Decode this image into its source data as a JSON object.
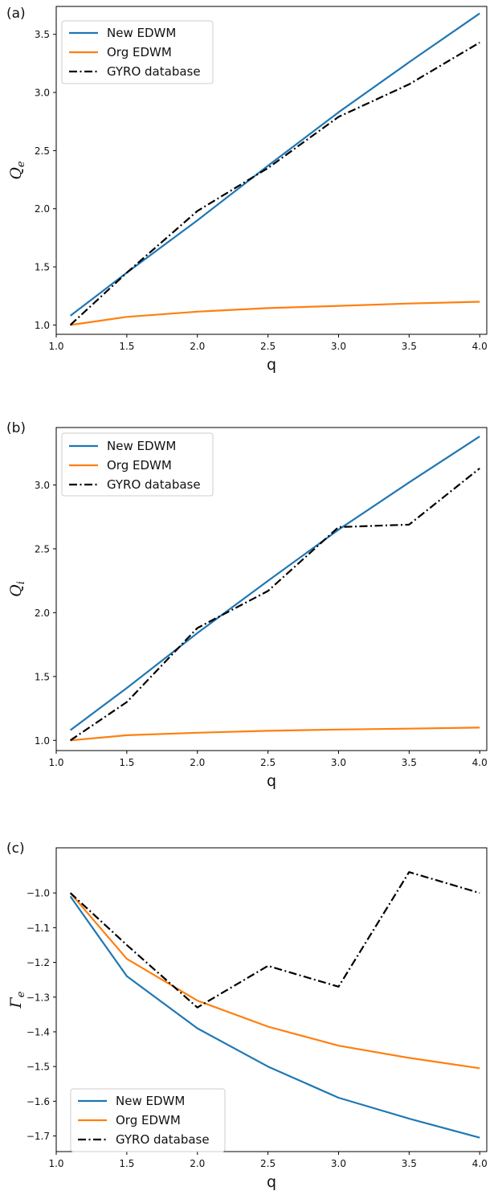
{
  "chart_data": [
    {
      "type": "line",
      "panel_label": "(a)",
      "xlabel": "q",
      "ylabel": "Q_e",
      "xlim": [
        1.0,
        4.05
      ],
      "ylim": [
        0.92,
        3.74
      ],
      "xticks": [
        "1.0",
        "1.5",
        "2.0",
        "2.5",
        "3.0",
        "3.5",
        "4.0"
      ],
      "yticks": [
        "1.0",
        "1.5",
        "2.0",
        "2.5",
        "3.0",
        "3.5"
      ],
      "legend_position": "top-left",
      "grid": false,
      "series": [
        {
          "name": "New EDWM",
          "color": "#1f77b4",
          "style": "solid",
          "x": [
            1.1,
            1.5,
            2.0,
            2.5,
            3.0,
            3.5,
            4.0
          ],
          "y": [
            1.08,
            1.45,
            1.9,
            2.37,
            2.83,
            3.26,
            3.68
          ]
        },
        {
          "name": "Org EDWM",
          "color": "#ff7f0e",
          "style": "solid",
          "x": [
            1.1,
            1.5,
            2.0,
            2.5,
            3.0,
            3.5,
            4.0
          ],
          "y": [
            1.0,
            1.07,
            1.115,
            1.145,
            1.165,
            1.185,
            1.2
          ]
        },
        {
          "name": "GYRO database",
          "color": "#000000",
          "style": "dashdot",
          "x": [
            1.1,
            1.5,
            2.0,
            2.5,
            3.0,
            3.5,
            4.0
          ],
          "y": [
            1.0,
            1.45,
            1.98,
            2.35,
            2.79,
            3.07,
            3.43
          ]
        }
      ]
    },
    {
      "type": "line",
      "panel_label": "(b)",
      "xlabel": "q",
      "ylabel": "Q_i",
      "xlim": [
        1.0,
        4.05
      ],
      "ylim": [
        0.92,
        3.45
      ],
      "xticks": [
        "1.0",
        "1.5",
        "2.0",
        "2.5",
        "3.0",
        "3.5",
        "4.0"
      ],
      "yticks": [
        "1.0",
        "1.5",
        "2.0",
        "2.5",
        "3.0"
      ],
      "legend_position": "top-left",
      "grid": false,
      "series": [
        {
          "name": "New EDWM",
          "color": "#1f77b4",
          "style": "solid",
          "x": [
            1.1,
            1.5,
            2.0,
            2.5,
            3.0,
            3.5,
            4.0
          ],
          "y": [
            1.08,
            1.41,
            1.84,
            2.25,
            2.65,
            3.02,
            3.38
          ]
        },
        {
          "name": "Org EDWM",
          "color": "#ff7f0e",
          "style": "solid",
          "x": [
            1.1,
            1.5,
            2.0,
            2.5,
            3.0,
            3.5,
            4.0
          ],
          "y": [
            1.0,
            1.04,
            1.06,
            1.075,
            1.085,
            1.092,
            1.1
          ]
        },
        {
          "name": "GYRO database",
          "color": "#000000",
          "style": "dashdot",
          "x": [
            1.1,
            1.5,
            2.0,
            2.5,
            3.0,
            3.5,
            4.0
          ],
          "y": [
            1.0,
            1.3,
            1.88,
            2.17,
            2.67,
            2.69,
            3.13
          ]
        }
      ]
    },
    {
      "type": "line",
      "panel_label": "(c)",
      "xlabel": "q",
      "ylabel": "Γ_e",
      "xlim": [
        1.0,
        4.05
      ],
      "ylim": [
        -1.745,
        -0.87
      ],
      "xticks": [
        "1.0",
        "1.5",
        "2.0",
        "2.5",
        "3.0",
        "3.5",
        "4.0"
      ],
      "yticks": [
        "−1.0",
        "−1.1",
        "−1.2",
        "−1.3",
        "−1.4",
        "−1.5",
        "−1.6",
        "−1.7"
      ],
      "legend_position": "bottom-left",
      "grid": false,
      "series": [
        {
          "name": "New EDWM",
          "color": "#1f77b4",
          "style": "solid",
          "x": [
            1.1,
            1.5,
            2.0,
            2.5,
            3.0,
            3.5,
            4.0
          ],
          "y": [
            -1.01,
            -1.24,
            -1.39,
            -1.5,
            -1.59,
            -1.65,
            -1.705
          ]
        },
        {
          "name": "Org EDWM",
          "color": "#ff7f0e",
          "style": "solid",
          "x": [
            1.1,
            1.5,
            2.0,
            2.5,
            3.0,
            3.5,
            4.0
          ],
          "y": [
            -1.0,
            -1.19,
            -1.31,
            -1.385,
            -1.44,
            -1.475,
            -1.505
          ]
        },
        {
          "name": "GYRO database",
          "color": "#000000",
          "style": "dashdot",
          "x": [
            1.1,
            1.5,
            2.0,
            2.5,
            3.0,
            3.5,
            4.0
          ],
          "y": [
            -1.0,
            -1.15,
            -1.33,
            -1.21,
            -1.27,
            -0.94,
            -1.0
          ]
        }
      ]
    }
  ]
}
